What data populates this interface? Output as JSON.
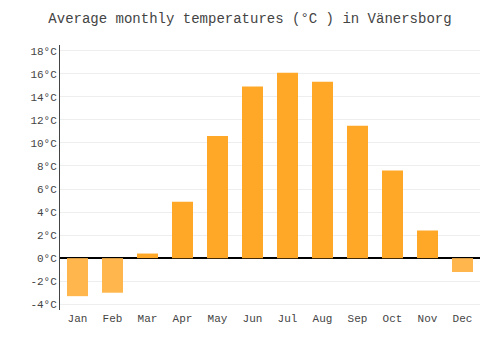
{
  "chart_data": {
    "type": "bar",
    "title": "Average monthly temperatures (°C ) in Vänersborg",
    "categories": [
      "Jan",
      "Feb",
      "Mar",
      "Apr",
      "May",
      "Jun",
      "Jul",
      "Aug",
      "Sep",
      "Oct",
      "Nov",
      "Dec"
    ],
    "values": [
      -3.3,
      -3.0,
      0.4,
      4.9,
      10.6,
      14.9,
      16.1,
      15.3,
      11.5,
      7.6,
      2.4,
      -1.2
    ],
    "colors": [
      "#FFB74D",
      "#FFB74D",
      "#FFA726",
      "#FFA726",
      "#FFA726",
      "#FFA726",
      "#FFA726",
      "#FFA726",
      "#FFA726",
      "#FFA726",
      "#FFA726",
      "#FFB74D"
    ],
    "ylim": [
      -4.5,
      18.5
    ],
    "yticks": [
      {
        "value": -4,
        "label": "-4°C"
      },
      {
        "value": -2,
        "label": "-2°C"
      },
      {
        "value": 0,
        "label": "0°C"
      },
      {
        "value": 2,
        "label": "2°C"
      },
      {
        "value": 4,
        "label": "4°C"
      },
      {
        "value": 6,
        "label": "6°C"
      },
      {
        "value": 8,
        "label": "8°C"
      },
      {
        "value": 10,
        "label": "10°C"
      },
      {
        "value": 12,
        "label": "12°C"
      },
      {
        "value": 14,
        "label": "14°C"
      },
      {
        "value": 16,
        "label": "16°C"
      },
      {
        "value": 18,
        "label": "18°C"
      }
    ],
    "grid": true
  }
}
